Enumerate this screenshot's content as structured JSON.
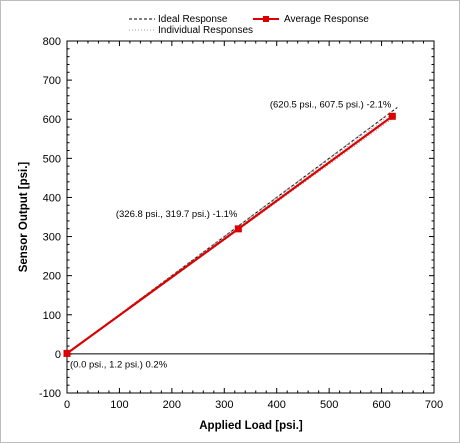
{
  "chart_data": {
    "type": "line",
    "xlabel": "Applied Load [psi.]",
    "ylabel": "Sensor Output [psi.]",
    "xlim": [
      0,
      700
    ],
    "ylim": [
      -100,
      800
    ],
    "xticks": [
      0,
      100,
      200,
      300,
      400,
      500,
      600,
      700
    ],
    "yticks": [
      -100,
      0,
      100,
      200,
      300,
      400,
      500,
      600,
      700,
      800
    ],
    "grid": false,
    "zero_line": true,
    "legend": {
      "placement": "top",
      "entries": [
        "Ideal Response",
        "Average Response",
        "Individual Responses"
      ]
    },
    "series": [
      {
        "name": "Ideal Response",
        "style": "dashed",
        "color": "#000000",
        "x": [
          0,
          630
        ],
        "y": [
          0,
          630
        ]
      },
      {
        "name": "Individual Responses",
        "style": "dotted",
        "color": "#9a9a9a",
        "lines": [
          {
            "x": [
              0,
              620.5
            ],
            "y": [
              1.0,
              615.0
            ]
          },
          {
            "x": [
              0,
              620.5
            ],
            "y": [
              2.0,
              621.0
            ]
          },
          {
            "x": [
              0,
              620.5
            ],
            "y": [
              0.5,
              601.0
            ]
          }
        ]
      },
      {
        "name": "Average Response",
        "style": "solid",
        "color": "#dd0000",
        "x": [
          0.0,
          326.8,
          620.5
        ],
        "y": [
          1.2,
          319.7,
          607.5
        ]
      }
    ],
    "annotations": [
      {
        "text": "(0.0 psi., 1.2 psi.) 0.2%",
        "x": 0.0,
        "y": 1.2
      },
      {
        "text": "(326.8 psi., 319.7 psi.) -1.1%",
        "x": 326.8,
        "y": 319.7
      },
      {
        "text": "(620.5 psi., 607.5 psi.) -2.1%",
        "x": 620.5,
        "y": 607.5
      }
    ]
  }
}
